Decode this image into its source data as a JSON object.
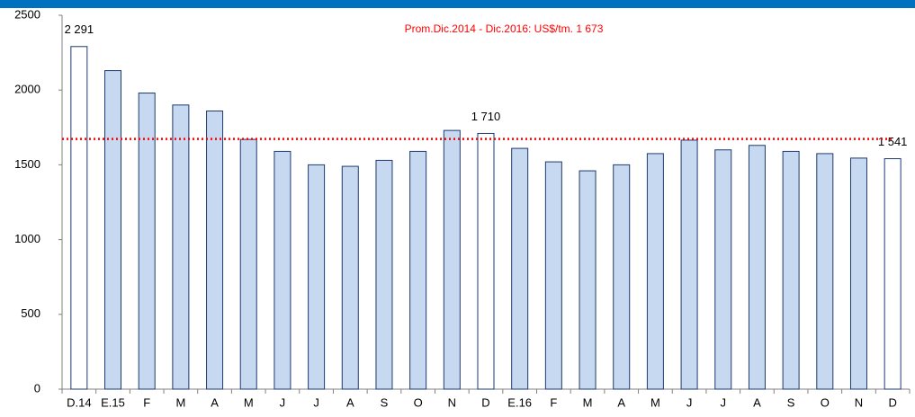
{
  "chart_data": {
    "type": "bar",
    "annotation": "Prom.Dic.2014 - Dic.2016: US$/tm. 1 673",
    "reference_line": 1673,
    "reference_color": "#ff0000",
    "categories": [
      "D.14",
      "E.15",
      "F",
      "M",
      "A",
      "M",
      "J",
      "J",
      "A",
      "S",
      "O",
      "N",
      "D",
      "E.16",
      "F",
      "M",
      "A",
      "M",
      "J",
      "J",
      "A",
      "S",
      "O",
      "N",
      "D"
    ],
    "values": [
      2291,
      2130,
      1980,
      1900,
      1860,
      1670,
      1590,
      1500,
      1490,
      1530,
      1590,
      1730,
      1710,
      1610,
      1520,
      1460,
      1500,
      1575,
      1665,
      1600,
      1630,
      1590,
      1575,
      1545,
      1541
    ],
    "value_labels": [
      "2 291",
      null,
      null,
      null,
      null,
      null,
      null,
      null,
      null,
      null,
      null,
      null,
      "1 710",
      null,
      null,
      null,
      null,
      null,
      null,
      null,
      null,
      null,
      null,
      null,
      "1 541"
    ],
    "colors": [
      "#ffffff",
      "#c6d9f1",
      "#c6d9f1",
      "#c6d9f1",
      "#c6d9f1",
      "#c6d9f1",
      "#c6d9f1",
      "#c6d9f1",
      "#c6d9f1",
      "#c6d9f1",
      "#c6d9f1",
      "#c6d9f1",
      "#ffffff",
      "#c6d9f1",
      "#c6d9f1",
      "#c6d9f1",
      "#c6d9f1",
      "#c6d9f1",
      "#c6d9f1",
      "#c6d9f1",
      "#c6d9f1",
      "#c6d9f1",
      "#c6d9f1",
      "#c6d9f1",
      "#ffffff"
    ],
    "ylim": [
      0,
      2500
    ],
    "yticks": [
      0,
      500,
      1000,
      1500,
      2000,
      2500
    ]
  }
}
